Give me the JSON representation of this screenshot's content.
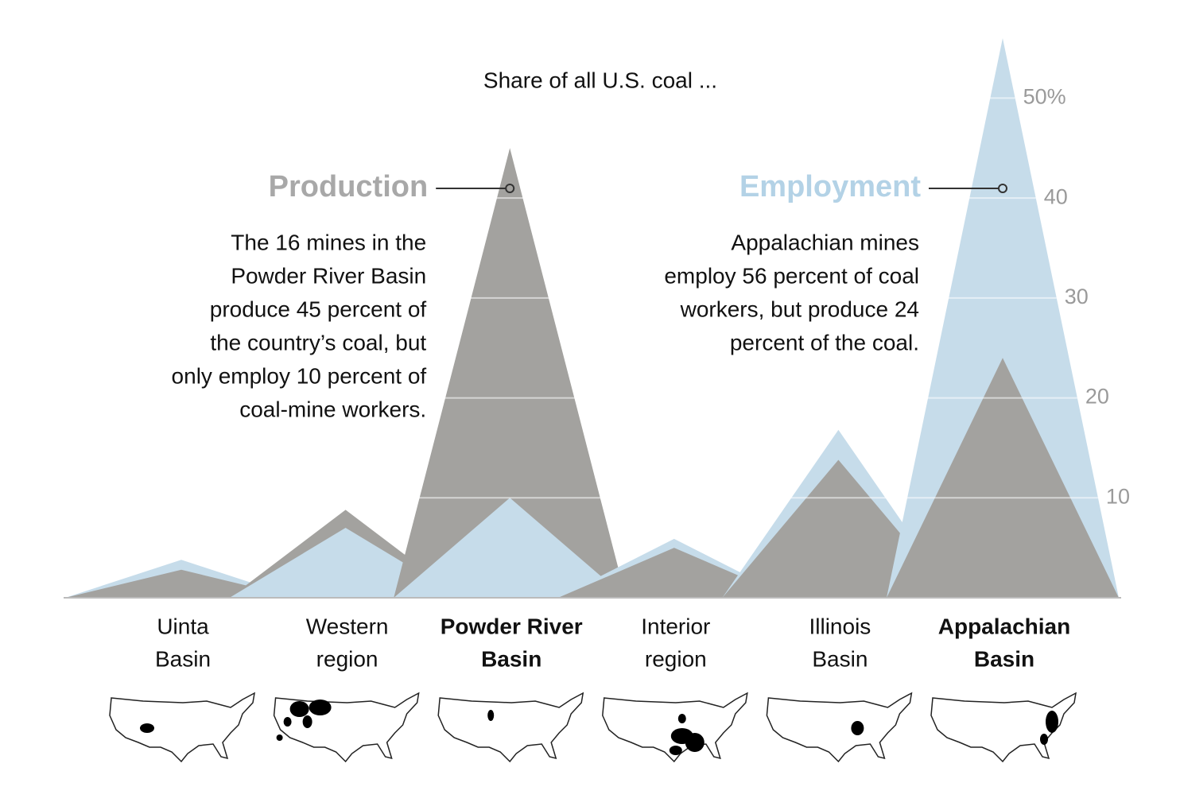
{
  "chart_data": {
    "type": "peaks",
    "title": "Share of all U.S. coal ...",
    "categories": [
      [
        "Uinta",
        "Basin"
      ],
      [
        "Western",
        "region"
      ],
      [
        "Powder River",
        "Basin"
      ],
      [
        "Interior",
        "region"
      ],
      [
        "Illinois",
        "Basin"
      ],
      [
        "Appalachian",
        "Basin"
      ]
    ],
    "highlight": [
      2,
      5
    ],
    "series": [
      {
        "name": "Production",
        "color": "#a3a29f",
        "label_color": "#a8a8a8",
        "values": [
          2.8,
          8.8,
          45,
          5,
          13.8,
          24
        ]
      },
      {
        "name": "Employment",
        "color": "#c6dcea",
        "label_color": "#b3d2e6",
        "values": [
          3.8,
          7,
          10,
          5.9,
          16.8,
          56
        ]
      }
    ],
    "annotations": [
      {
        "series": 0,
        "category": 2,
        "lines": [
          "The 16 mines in the",
          "Powder River Basin",
          "produce 45 percent of",
          "the country’s coal, but",
          "only employ 10 percent of",
          "coal-mine workers."
        ]
      },
      {
        "series": 1,
        "category": 5,
        "lines": [
          "Appalachian mines",
          "employ 56 percent of coal",
          "workers, but produce 24",
          "percent of the coal."
        ]
      }
    ],
    "ylim": [
      0,
      56
    ],
    "yticks": [
      10,
      20,
      30,
      40,
      {
        "value": 50,
        "label": "50%"
      }
    ],
    "grid": true
  }
}
